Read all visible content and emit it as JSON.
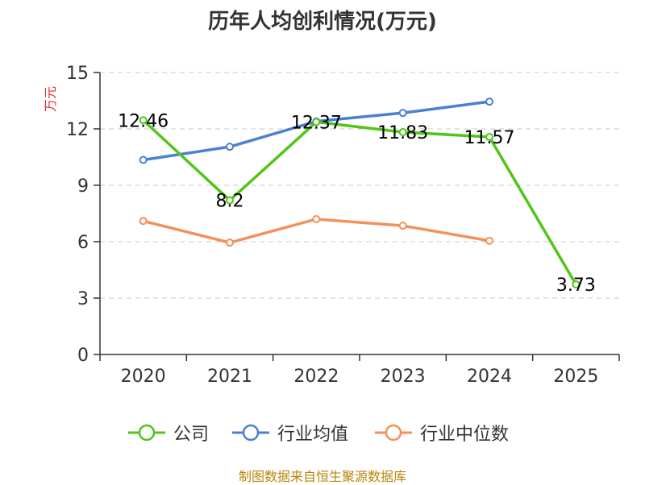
{
  "chart_data": {
    "type": "line",
    "title": "历年人均创利情况(万元)",
    "ylabel": "万元",
    "xlabel": "",
    "categories": [
      "2020",
      "2021",
      "2022",
      "2023",
      "2024",
      "2025"
    ],
    "ylim": [
      0,
      15
    ],
    "yticks": [
      0,
      3,
      6,
      9,
      12,
      15
    ],
    "grid": true,
    "legend_position": "bottom",
    "series": [
      {
        "name": "公司",
        "color": "#52c41a",
        "values": [
          12.46,
          8.2,
          12.37,
          11.83,
          11.57,
          3.73
        ],
        "labels": [
          "12.46",
          "8.2",
          "12.37",
          "11.83",
          "11.57",
          "3.73"
        ]
      },
      {
        "name": "行业均值",
        "color": "#4a7fd4",
        "values": [
          10.35,
          11.05,
          12.4,
          12.85,
          13.45,
          null
        ]
      },
      {
        "name": "行业中位数",
        "color": "#f4905a",
        "values": [
          7.1,
          5.95,
          7.2,
          6.85,
          6.05,
          null
        ]
      }
    ]
  },
  "footer": {
    "source": "制图数据来自恒生聚源数据库"
  }
}
